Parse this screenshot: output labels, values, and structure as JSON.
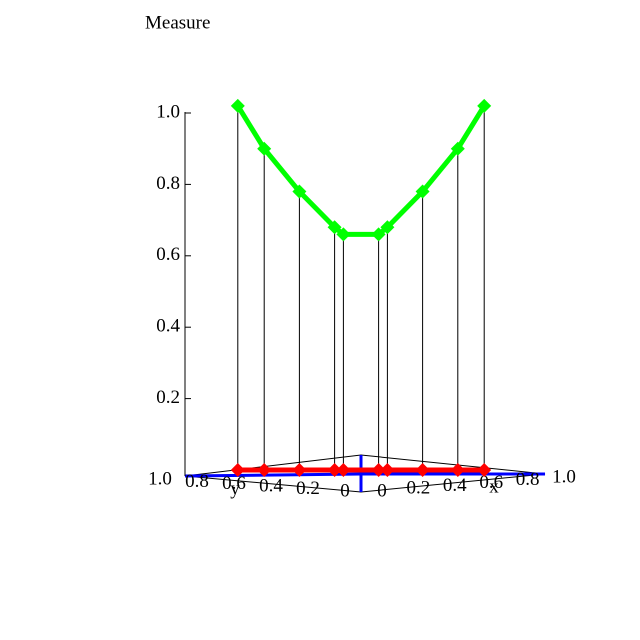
{
  "chart_data": {
    "type": "line3d",
    "title": "Measure",
    "x": [
      0,
      0,
      0,
      0,
      0,
      0.1,
      0.15,
      0.35,
      0.55,
      0.7
    ],
    "y": [
      0.7,
      0.55,
      0.35,
      0.15,
      0.1,
      0,
      0,
      0,
      0,
      0
    ],
    "series": [
      {
        "color": "#00ff00",
        "values": [
          1.02,
          0.9,
          0.78,
          0.68,
          0.66,
          0.66,
          0.68,
          0.78,
          0.9,
          1.02
        ]
      },
      {
        "color": "#ff0000",
        "values": [
          0,
          0,
          0,
          0,
          0,
          0,
          0,
          0,
          0,
          0
        ]
      }
    ],
    "zlim": [
      0,
      1
    ],
    "zticks": [
      0.2,
      0.4,
      0.6,
      0.8,
      {
        "value": 1,
        "label": "1.0"
      }
    ],
    "xlabel": "x",
    "ylabel": "y",
    "xticks": [
      0,
      0.2,
      0.4,
      0.6,
      0.8,
      {
        "value": 1,
        "label": "1.0"
      }
    ],
    "yticks": [
      0,
      0.2,
      0.4,
      0.6,
      0.8,
      {
        "value": 1,
        "label": "1.0"
      }
    ]
  }
}
